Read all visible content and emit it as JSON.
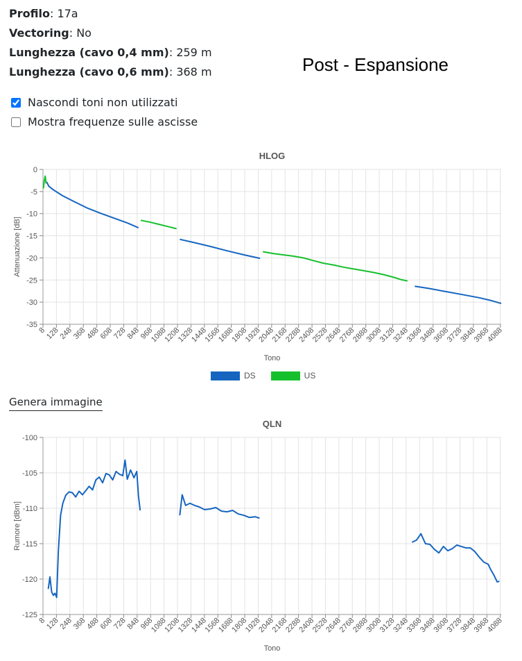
{
  "info": {
    "profile_label": "Profilo",
    "profile_value": "17a",
    "vectoring_label": "Vectoring",
    "vectoring_value": "No",
    "length04_label": "Lunghezza (cavo 0,4 mm)",
    "length04_value": "259 m",
    "length06_label": "Lunghezza (cavo 0,6 mm)",
    "length06_value": "368 m"
  },
  "overlay_text": "Post - Espansione",
  "options": {
    "hide_unused": {
      "label": "Nascondi toni non utilizzati",
      "checked": true
    },
    "show_freq": {
      "label": "Mostra frequenze sulle ascisse",
      "checked": false
    }
  },
  "generate_link": "Genera immagine",
  "colors": {
    "ds": "#1565c0",
    "us": "#16c02c"
  },
  "chart_data": [
    {
      "id": "hlog",
      "type": "line",
      "title": "HLOG",
      "xlabel": "Tono",
      "ylabel": "Attenuazione [dB]",
      "xlim": [
        8,
        4096
      ],
      "ylim": [
        -35,
        0
      ],
      "yticks": [
        0,
        -5,
        -10,
        -15,
        -20,
        -25,
        -30,
        -35
      ],
      "xticks": [
        8,
        128,
        248,
        368,
        488,
        608,
        728,
        848,
        968,
        1088,
        1208,
        1328,
        1448,
        1568,
        1688,
        1808,
        1928,
        2048,
        2168,
        2288,
        2408,
        2528,
        2648,
        2768,
        2888,
        3008,
        3128,
        3248,
        3368,
        3488,
        3608,
        3728,
        3848,
        3968,
        4088
      ],
      "grid": true,
      "legend": "bottom",
      "series": [
        {
          "name": "DS",
          "color": "#1565c0",
          "segments": [
            [
              [
                40,
                -2.8
              ],
              [
                60,
                -3.8
              ],
              [
                100,
                -4.6
              ],
              [
                180,
                -5.9
              ],
              [
                280,
                -7.2
              ],
              [
                400,
                -8.7
              ],
              [
                520,
                -9.9
              ],
              [
                640,
                -11.0
              ],
              [
                760,
                -12.1
              ],
              [
                860,
                -13.2
              ]
            ],
            [
              [
                1228,
                -15.8
              ],
              [
                1350,
                -16.5
              ],
              [
                1500,
                -17.4
              ],
              [
                1650,
                -18.4
              ],
              [
                1800,
                -19.3
              ],
              [
                1945,
                -20.1
              ]
            ],
            [
              [
                3325,
                -26.4
              ],
              [
                3450,
                -26.9
              ],
              [
                3600,
                -27.6
              ],
              [
                3750,
                -28.3
              ],
              [
                3900,
                -29.0
              ],
              [
                4000,
                -29.6
              ],
              [
                4096,
                -30.3
              ]
            ]
          ]
        },
        {
          "name": "US",
          "color": "#16c02c",
          "segments": [
            [
              [
                12,
                -4.3
              ],
              [
                20,
                -2.5
              ],
              [
                28,
                -1.5
              ],
              [
                36,
                -3.2
              ]
            ],
            [
              [
                880,
                -11.5
              ],
              [
                960,
                -11.9
              ],
              [
                1040,
                -12.4
              ],
              [
                1120,
                -12.9
              ],
              [
                1200,
                -13.4
              ]
            ],
            [
              [
                1970,
                -18.6
              ],
              [
                2060,
                -19.0
              ],
              [
                2150,
                -19.3
              ],
              [
                2240,
                -19.6
              ],
              [
                2330,
                -20.0
              ],
              [
                2420,
                -20.6
              ],
              [
                2510,
                -21.2
              ],
              [
                2600,
                -21.6
              ],
              [
                2690,
                -22.1
              ],
              [
                2780,
                -22.5
              ],
              [
                2870,
                -22.9
              ],
              [
                2960,
                -23.3
              ],
              [
                3050,
                -23.8
              ],
              [
                3140,
                -24.4
              ],
              [
                3200,
                -24.9
              ],
              [
                3260,
                -25.2
              ]
            ]
          ]
        }
      ]
    },
    {
      "id": "qln",
      "type": "line",
      "title": "QLN",
      "xlabel": "Tono",
      "ylabel": "Rumore [dBm]",
      "xlim": [
        8,
        4096
      ],
      "ylim": [
        -125,
        -100
      ],
      "yticks": [
        -100,
        -105,
        -110,
        -115,
        -120,
        -125
      ],
      "xticks": [
        8,
        128,
        248,
        368,
        488,
        608,
        728,
        848,
        968,
        1088,
        1208,
        1328,
        1448,
        1568,
        1688,
        1808,
        1928,
        2048,
        2168,
        2288,
        2408,
        2528,
        2648,
        2768,
        2888,
        3008,
        3128,
        3248,
        3368,
        3488,
        3608,
        3728,
        3848,
        3968,
        4088
      ],
      "grid": true,
      "series": [
        {
          "name": "",
          "color": "#1565c0",
          "segments": [
            [
              [
                55,
                -121.4
              ],
              [
                70,
                -119.7
              ],
              [
                85,
                -121.8
              ],
              [
                100,
                -122.3
              ],
              [
                115,
                -122.0
              ],
              [
                130,
                -122.6
              ],
              [
                145,
                -116.0
              ],
              [
                165,
                -111.0
              ],
              [
                185,
                -109.3
              ],
              [
                210,
                -108.2
              ],
              [
                240,
                -107.7
              ],
              [
                270,
                -107.8
              ],
              [
                300,
                -108.4
              ],
              [
                330,
                -107.6
              ],
              [
                360,
                -108.1
              ],
              [
                390,
                -107.5
              ],
              [
                420,
                -106.9
              ],
              [
                450,
                -107.4
              ],
              [
                480,
                -106.0
              ],
              [
                510,
                -105.6
              ],
              [
                540,
                -106.4
              ],
              [
                570,
                -105.1
              ],
              [
                600,
                -105.3
              ],
              [
                630,
                -106.0
              ],
              [
                660,
                -104.8
              ],
              [
                690,
                -105.2
              ],
              [
                720,
                -105.4
              ],
              [
                740,
                -103.2
              ],
              [
                760,
                -105.9
              ],
              [
                790,
                -104.6
              ],
              [
                820,
                -105.7
              ],
              [
                845,
                -104.8
              ],
              [
                860,
                -108.3
              ],
              [
                875,
                -110.3
              ]
            ],
            [
              [
                1228,
                -111.0
              ],
              [
                1250,
                -108.1
              ],
              [
                1280,
                -109.6
              ],
              [
                1320,
                -109.3
              ],
              [
                1360,
                -109.6
              ],
              [
                1400,
                -109.8
              ],
              [
                1450,
                -110.2
              ],
              [
                1500,
                -110.1
              ],
              [
                1550,
                -109.9
              ],
              [
                1600,
                -110.4
              ],
              [
                1650,
                -110.5
              ],
              [
                1700,
                -110.3
              ],
              [
                1750,
                -110.8
              ],
              [
                1800,
                -111.0
              ],
              [
                1850,
                -111.3
              ],
              [
                1900,
                -111.2
              ],
              [
                1940,
                -111.4
              ]
            ],
            [
              [
                3300,
                -114.8
              ],
              [
                3340,
                -114.5
              ],
              [
                3380,
                -113.6
              ],
              [
                3420,
                -115.0
              ],
              [
                3460,
                -115.1
              ],
              [
                3500,
                -115.8
              ],
              [
                3540,
                -116.3
              ],
              [
                3580,
                -115.4
              ],
              [
                3620,
                -116.0
              ],
              [
                3660,
                -115.7
              ],
              [
                3700,
                -115.2
              ],
              [
                3740,
                -115.4
              ],
              [
                3780,
                -115.6
              ],
              [
                3820,
                -115.6
              ],
              [
                3860,
                -116.1
              ],
              [
                3900,
                -116.9
              ],
              [
                3940,
                -117.6
              ],
              [
                3980,
                -117.9
              ],
              [
                4000,
                -118.6
              ],
              [
                4030,
                -119.4
              ],
              [
                4060,
                -120.4
              ],
              [
                4080,
                -120.3
              ]
            ]
          ]
        }
      ]
    }
  ]
}
